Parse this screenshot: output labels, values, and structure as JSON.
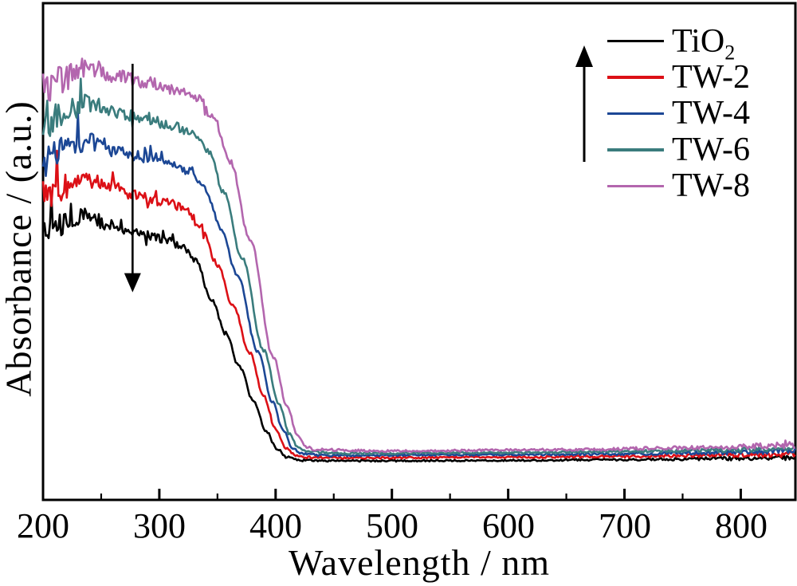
{
  "figure": {
    "xlabel": "Wavelength / nm",
    "ylabel": "Absorbance / (a.u.)",
    "background_color": "#ffffff",
    "axis_color": "#000000"
  },
  "legend": {
    "position": "top-right",
    "up_arrow_present": true,
    "items": [
      {
        "label": "TiO2",
        "label_base": "TiO",
        "label_sub": "2",
        "color": "#000000"
      },
      {
        "label": "TW-2",
        "label_base": "TW-2",
        "label_sub": "",
        "color": "#dc1016"
      },
      {
        "label": "TW-4",
        "label_base": "TW-4",
        "label_sub": "",
        "color": "#1c4795"
      },
      {
        "label": "TW-6",
        "label_base": "TW-6",
        "label_sub": "",
        "color": "#3a7c7d"
      },
      {
        "label": "TW-8",
        "label_base": "TW-8",
        "label_sub": "",
        "color": "#b366ae"
      }
    ]
  },
  "chart_data": {
    "type": "line",
    "title": "",
    "xlabel": "Wavelength / nm",
    "ylabel": "Absorbance / (a.u.)",
    "x_range": [
      200,
      847
    ],
    "x_major_ticks": [
      200,
      300,
      400,
      500,
      600,
      700,
      800
    ],
    "x_minor_ticks": [
      250,
      350,
      450,
      550,
      650,
      750
    ],
    "y_axis": "arbitrary units, no tick labels",
    "grid": false,
    "legend_position": "top-right inside plot",
    "series": [
      {
        "name": "TiO2",
        "color": "#000000",
        "absorption_edge_nm": 369,
        "baseline_au": 0.079,
        "plateau_au": 0.525,
        "peak_au": 0.572,
        "peak_nm": 235,
        "noise_scale": 0.85,
        "anchors": [
          [
            200,
            0.54
          ],
          [
            218,
            0.556
          ],
          [
            235,
            0.572
          ],
          [
            258,
            0.553
          ],
          [
            282,
            0.536
          ],
          [
            303,
            0.525
          ],
          [
            318,
            0.513
          ],
          [
            331,
            0.482
          ],
          [
            345,
            0.405
          ],
          [
            357,
            0.335
          ],
          [
            369,
            0.268
          ],
          [
            381,
            0.198
          ],
          [
            392,
            0.138
          ],
          [
            401,
            0.103
          ],
          [
            410,
            0.086
          ],
          [
            422,
            0.0795
          ],
          [
            460,
            0.0785
          ],
          [
            600,
            0.0795
          ],
          [
            700,
            0.081
          ],
          [
            780,
            0.083
          ],
          [
            847,
            0.085
          ]
        ]
      },
      {
        "name": "TW-2",
        "color": "#dc1016",
        "absorption_edge_nm": 378,
        "baseline_au": 0.0845,
        "plateau_au": 0.599,
        "peak_au": 0.646,
        "peak_nm": 236,
        "noise_scale": 1.0,
        "anchors": [
          [
            200,
            0.612
          ],
          [
            218,
            0.63
          ],
          [
            236,
            0.646
          ],
          [
            259,
            0.628
          ],
          [
            284,
            0.611
          ],
          [
            306,
            0.599
          ],
          [
            322,
            0.587
          ],
          [
            336,
            0.552
          ],
          [
            350,
            0.474
          ],
          [
            363,
            0.393
          ],
          [
            378,
            0.295
          ],
          [
            390,
            0.208
          ],
          [
            400,
            0.143
          ],
          [
            409,
            0.105
          ],
          [
            417,
            0.09
          ],
          [
            430,
            0.0855
          ],
          [
            460,
            0.0845
          ],
          [
            600,
            0.086
          ],
          [
            700,
            0.0875
          ],
          [
            780,
            0.09
          ],
          [
            847,
            0.092
          ]
        ]
      },
      {
        "name": "TW-4",
        "color": "#1c4795",
        "absorption_edge_nm": 385,
        "baseline_au": 0.0895,
        "plateau_au": 0.677,
        "peak_au": 0.722,
        "peak_nm": 237,
        "noise_scale": 1.0,
        "anchors": [
          [
            200,
            0.685
          ],
          [
            219,
            0.704
          ],
          [
            237,
            0.722
          ],
          [
            260,
            0.705
          ],
          [
            286,
            0.689
          ],
          [
            308,
            0.677
          ],
          [
            325,
            0.664
          ],
          [
            339,
            0.627
          ],
          [
            353,
            0.548
          ],
          [
            367,
            0.452
          ],
          [
            385,
            0.298
          ],
          [
            397,
            0.198
          ],
          [
            407,
            0.138
          ],
          [
            415,
            0.102
          ],
          [
            423,
            0.093
          ],
          [
            440,
            0.0895
          ],
          [
            600,
            0.091
          ],
          [
            700,
            0.0925
          ],
          [
            780,
            0.095
          ],
          [
            847,
            0.098
          ]
        ]
      },
      {
        "name": "TW-6",
        "color": "#3a7c7d",
        "absorption_edge_nm": 390,
        "baseline_au": 0.0935,
        "plateau_au": 0.754,
        "peak_au": 0.798,
        "peak_nm": 238,
        "noise_scale": 1.05,
        "anchors": [
          [
            200,
            0.757
          ],
          [
            220,
            0.778
          ],
          [
            238,
            0.798
          ],
          [
            261,
            0.782
          ],
          [
            288,
            0.767
          ],
          [
            310,
            0.754
          ],
          [
            328,
            0.74
          ],
          [
            342,
            0.703
          ],
          [
            356,
            0.617
          ],
          [
            371,
            0.487
          ],
          [
            390,
            0.3
          ],
          [
            403,
            0.192
          ],
          [
            412,
            0.132
          ],
          [
            420,
            0.104
          ],
          [
            428,
            0.0965
          ],
          [
            460,
            0.0935
          ],
          [
            600,
            0.095
          ],
          [
            700,
            0.0975
          ],
          [
            780,
            0.1
          ],
          [
            847,
            0.103
          ]
        ]
      },
      {
        "name": "TW-8",
        "color": "#b366ae",
        "absorption_edge_nm": 398,
        "baseline_au": 0.0985,
        "plateau_au": 0.826,
        "peak_au": 0.871,
        "peak_nm": 239,
        "noise_scale": 1.15,
        "anchors": [
          [
            200,
            0.828
          ],
          [
            221,
            0.85
          ],
          [
            239,
            0.871
          ],
          [
            263,
            0.855
          ],
          [
            290,
            0.84
          ],
          [
            314,
            0.826
          ],
          [
            332,
            0.81
          ],
          [
            346,
            0.772
          ],
          [
            361,
            0.68
          ],
          [
            378,
            0.525
          ],
          [
            398,
            0.288
          ],
          [
            410,
            0.188
          ],
          [
            419,
            0.128
          ],
          [
            427,
            0.106
          ],
          [
            434,
            0.101
          ],
          [
            500,
            0.0985
          ],
          [
            650,
            0.101
          ],
          [
            760,
            0.105
          ],
          [
            847,
            0.11
          ]
        ]
      }
    ],
    "noise_profile": [
      [
        200,
        0.03
      ],
      [
        220,
        0.026
      ],
      [
        240,
        0.018
      ],
      [
        265,
        0.012
      ],
      [
        295,
        0.01
      ],
      [
        320,
        0.008
      ],
      [
        345,
        0.006
      ],
      [
        375,
        0.0035
      ],
      [
        410,
        0.0025
      ],
      [
        450,
        0.002
      ],
      [
        600,
        0.0018
      ],
      [
        700,
        0.0025
      ],
      [
        780,
        0.0038
      ],
      [
        847,
        0.006
      ]
    ],
    "annotations": {
      "down_arrow": {
        "x_nm": 277,
        "from_au": 0.878,
        "to_au": 0.418
      },
      "up_arrow_in_legend": true
    }
  }
}
